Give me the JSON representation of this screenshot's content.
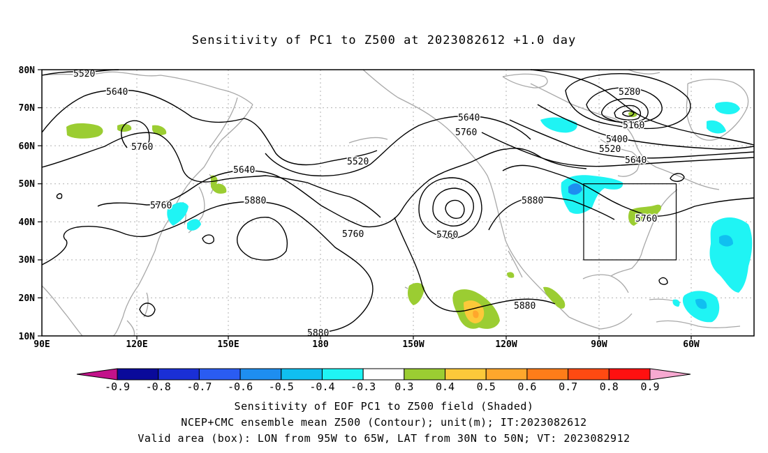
{
  "title": "Sensitivity of PC1 to Z500 at 2023082612 +1.0 day",
  "lat_labels": [
    "80N",
    "70N",
    "60N",
    "50N",
    "40N",
    "30N",
    "20N",
    "10N"
  ],
  "lon_labels": [
    "90E",
    "120E",
    "150E",
    "180",
    "150W",
    "120W",
    "90W",
    "60W"
  ],
  "contour_labels": [
    {
      "text": "5520"
    },
    {
      "text": "5640"
    },
    {
      "text": "5760"
    },
    {
      "text": "5640"
    },
    {
      "text": "5760"
    },
    {
      "text": "5880"
    },
    {
      "text": "5520"
    },
    {
      "text": "5760"
    },
    {
      "text": "5640"
    },
    {
      "text": "5760"
    },
    {
      "text": "5760"
    },
    {
      "text": "5880"
    },
    {
      "text": "5880"
    },
    {
      "text": "5880"
    },
    {
      "text": "5280"
    },
    {
      "text": "5160"
    },
    {
      "text": "5400"
    },
    {
      "text": "5520"
    },
    {
      "text": "5640"
    },
    {
      "text": "5760"
    }
  ],
  "colorbar": {
    "tick_labels": [
      "-0.9",
      "-0.8",
      "-0.7",
      "-0.6",
      "-0.5",
      "-0.4",
      "-0.3",
      "0.3",
      "0.4",
      "0.5",
      "0.6",
      "0.7",
      "0.8",
      "0.9"
    ],
    "colors": [
      "#0a0a9a",
      "#1a2fd6",
      "#2a5cf2",
      "#1e8ef0",
      "#10bff0",
      "#1ff4f4",
      "#ffffff",
      "#9bcd32",
      "#fcc93a",
      "#ffa72c",
      "#ff7d19",
      "#ff4a12",
      "#ff1010"
    ],
    "low_end_color": "#c2128a",
    "high_end_color": "#f7a9d1"
  },
  "footer": {
    "line1": "Sensitivity of EOF PC1 to Z500 field (Shaded)",
    "line2": "NCEP+CMC ensemble mean Z500 (Contour); unit(m); IT:2023082612",
    "line3": "Valid area (box): LON from 95W to 65W, LAT from 30N to 50N; VT: 2023082912"
  },
  "valid_box": {
    "lon_min": -95,
    "lon_max": -65,
    "lat_min": 30,
    "lat_max": 50
  }
}
